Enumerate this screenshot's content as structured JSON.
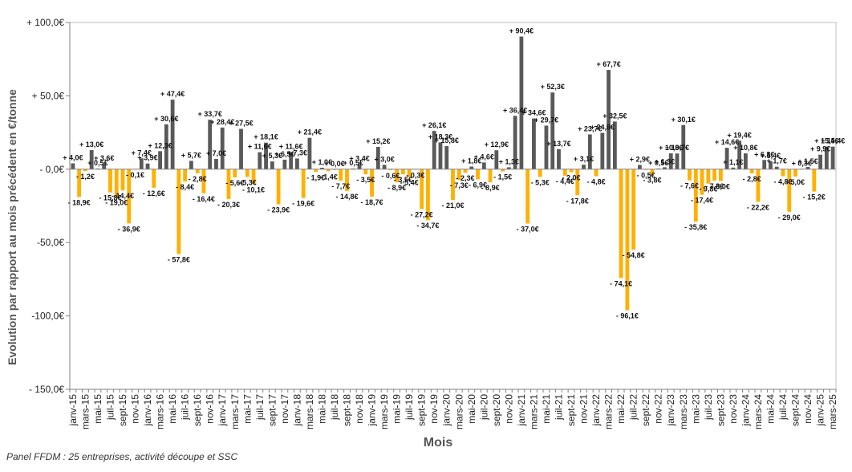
{
  "footnote": "Panel FFDM : 25 entreprises, activité découpe et SSC",
  "chart_data": {
    "type": "bar",
    "title": "",
    "xlabel": "Mois",
    "ylabel": "Evolution par rapport au mois précédent en €/tonne",
    "ylim": [
      -150,
      100
    ],
    "yticks": [
      100,
      50,
      0,
      -50,
      -100,
      -150
    ],
    "ytick_labels": [
      "+ 100,0€",
      "+ 50,0€",
      "- 0,0€",
      "-50,0€",
      "-100,0€",
      "- 150,0€"
    ],
    "grid": false,
    "legend": "none",
    "colors": {
      "positive": "#595959",
      "negative": "#ffb000"
    },
    "categories": [
      "janv-15",
      "févr-15",
      "mars-15",
      "avr-15",
      "mai-15",
      "juin-15",
      "juil-15",
      "août-15",
      "sept-15",
      "oct-15",
      "nov-15",
      "déc-15",
      "janv-16",
      "févr-16",
      "mars-16",
      "avr-16",
      "mai-16",
      "juin-16",
      "juil-16",
      "août-16",
      "sept-16",
      "oct-16",
      "nov-16",
      "déc-16",
      "janv-17",
      "févr-17",
      "mars-17",
      "avr-17",
      "mai-17",
      "juin-17",
      "juil-17",
      "août-17",
      "sept-17",
      "oct-17",
      "nov-17",
      "déc-17",
      "janv-18",
      "févr-18",
      "mars-18",
      "avr-18",
      "mai-18",
      "juin-18",
      "juil-18",
      "août-18",
      "sept-18",
      "oct-18",
      "nov-18",
      "déc-18",
      "janv-19",
      "févr-19",
      "mars-19",
      "avr-19",
      "mai-19",
      "juin-19",
      "juil-19",
      "août-19",
      "sept-19",
      "oct-19",
      "nov-19",
      "déc-19",
      "janv-20",
      "févr-20",
      "mars-20",
      "avr-20",
      "mai-20",
      "juin-20",
      "juil-20",
      "août-20",
      "sept-20",
      "oct-20",
      "nov-20",
      "déc-20",
      "janv-21",
      "févr-21",
      "mars-21",
      "avr-21",
      "mai-21",
      "juin-21",
      "juil-21",
      "août-21",
      "sept-21",
      "oct-21",
      "nov-21",
      "déc-21",
      "janv-22",
      "févr-22",
      "mars-22",
      "avr-22",
      "mai-22",
      "juin-22",
      "juil-22",
      "août-22",
      "sept-22",
      "oct-22",
      "nov-22",
      "déc-22",
      "janv-23",
      "févr-23",
      "mars-23",
      "avr-23",
      "mai-23",
      "juin-23",
      "juil-23",
      "août-23",
      "sept-23",
      "oct-23",
      "nov-23",
      "déc-23",
      "janv-24",
      "févr-24",
      "mars-24",
      "avr-24",
      "mai-24",
      "juin-24",
      "juil-24",
      "août-24",
      "sept-24",
      "oct-24",
      "nov-24",
      "déc-24",
      "janv-25",
      "févr-25",
      "mars-25"
    ],
    "tick_labels": [
      "janv-15",
      "mars-15",
      "mai-15",
      "juil-15",
      "sept-15",
      "nov-15",
      "janv-16",
      "mars-16",
      "mai-16",
      "juil-16",
      "sept-16",
      "nov-16",
      "janv-17",
      "mars-17",
      "mai-17",
      "juil-17",
      "sept-17",
      "nov-17",
      "janv-18",
      "mars-18",
      "mai-18",
      "juil-18",
      "sept-18",
      "nov-18",
      "janv-19",
      "mars-19",
      "mai-19",
      "juil-19",
      "sept-19",
      "nov-19",
      "janv-20",
      "mars-20",
      "mai-20",
      "juil-20",
      "sept-20",
      "nov-20",
      "janv-21",
      "mars-21",
      "mai-21",
      "juil-21",
      "sept-21",
      "nov-21",
      "janv-22",
      "mars-22",
      "mai-22",
      "juil-22",
      "sept-22",
      "nov-22",
      "janv-23",
      "mars-23",
      "mai-23",
      "juil-23",
      "sept-23",
      "nov-23",
      "janv-24",
      "mars-24",
      "mai-24",
      "juil-24",
      "sept-24",
      "nov-24",
      "janv-25",
      "mars-25"
    ],
    "values": [
      4.0,
      -18.9,
      -1.2,
      13.0,
      0.5,
      3.6,
      -15.8,
      -19.0,
      -14.4,
      -36.9,
      -0.1,
      7.4,
      3.9,
      -12.6,
      12.3,
      30.6,
      47.4,
      -57.8,
      -8.4,
      5.7,
      -2.8,
      -16.4,
      33.7,
      7.0,
      28.4,
      -20.3,
      -5.6,
      27.5,
      -5.3,
      -10.1,
      11.6,
      18.1,
      5.3,
      -23.9,
      6.5,
      11.6,
      7.3,
      -19.6,
      21.4,
      -1.9,
      1.0,
      -1.4,
      0.0,
      -7.7,
      -14.8,
      0.5,
      3.4,
      -3.5,
      -18.7,
      15.2,
      3.0,
      -0.6,
      -8.9,
      -3.5,
      -5.4,
      -0.3,
      -27.2,
      -34.7,
      26.1,
      18.3,
      15.8,
      -21.0,
      -7.3,
      -2.3,
      1.8,
      -6.9,
      4.6,
      -8.9,
      12.9,
      -1.5,
      1.3,
      36.4,
      90.4,
      -37.0,
      34.6,
      -5.3,
      29.7,
      52.3,
      13.7,
      -4.4,
      -2.0,
      -17.8,
      3.1,
      23.7,
      -4.8,
      24.8,
      67.7,
      32.5,
      -74.1,
      -96.1,
      -54.8,
      2.9,
      -0.5,
      -3.8,
      0.5,
      1.3,
      10.8,
      10.7,
      30.1,
      -7.6,
      -35.8,
      -17.4,
      -9.8,
      -7.8,
      -8.0,
      14.6,
      1.1,
      19.4,
      10.8,
      -2.8,
      -22.2,
      6.3,
      5.4,
      1.7,
      -4.8,
      -29.0,
      -5.0,
      0.3,
      1.5,
      -15.2,
      9.9,
      15.4,
      15.4
    ],
    "data_labels": [
      "+ 4,0€",
      "- 18,9€",
      "- 1,2€",
      "+ 13,0€",
      "+ 0,5€",
      "+ 3,6€",
      "- 15,8€",
      "- 19,0€",
      "- 14,4€",
      "- 36,9€",
      "- 0,1€",
      "+ 7,4€",
      "+ 3,9€",
      "- 12,6€",
      "+ 12,3€",
      "+ 30,6€",
      "+ 47,4€",
      "- 57,8€",
      "- 8,4€",
      "+ 5,7€",
      "- 2,8€",
      "- 16,4€",
      "+ 33,7€",
      "+ 7,0€",
      "+ 28,4€",
      "- 20,3€",
      "- 5,6€",
      "+ 27,5€",
      "- 5,3€",
      "- 10,1€",
      "+ 11,6€",
      "+ 18,1€",
      "+ 5,3€",
      "- 23,9€",
      "+ 6,5€",
      "+ 11,6€",
      "+ 7,3€",
      "- 19,6€",
      "+ 21,4€",
      "- 1,9€",
      "+ 1,0€",
      "- 1,4€",
      "+ 0,0€",
      "- 7,7€",
      "- 14,8€",
      "+ 0,5€",
      "+ 3,4€",
      "- 3,5€",
      "- 18,7€",
      "+ 15,2€",
      "+ 3,0€",
      "- 0,6€",
      "- 8,9€",
      "- 3,5€",
      "- 5,4€",
      "- 0,3€",
      "- 27,2€",
      "- 34,7€",
      "+ 26,1€",
      "+ 18,3€",
      "+ 15,8€",
      "- 21,0€",
      "- 7,3€",
      "- 2,3€",
      "+ 1,8€",
      "- 6,9€",
      "+ 4,6€",
      "- 8,9€",
      "+ 12,9€",
      "- 1,5€",
      "+ 1,3€",
      "+ 36,4€",
      "+ 90,4€",
      "- 37,0€",
      "+ 34,6€",
      "- 5,3€",
      "+ 29,7€",
      "+ 52,3€",
      "+ 13,7€",
      "- 4,4€",
      "- 2,0€",
      "- 17,8€",
      "+ 3,1€",
      "+ 23,7€",
      "- 4,8€",
      "+ 24,8€",
      "+ 67,7€",
      "+ 32,5€",
      "- 74,1€",
      "- 96,1€",
      "- 54,8€",
      "+ 2,9€",
      "- 0,5€",
      "- 3,8€",
      "+ 0,5€",
      "+ 1,3€",
      "+ 10,8€",
      "+ 10,7€",
      "+ 30,1€",
      "- 7,6€",
      "- 35,8€",
      "- 17,4€",
      "- 9,8€",
      "- 7,8€",
      "- 8,0€",
      "+ 14,6€",
      "+ 1,1€",
      "+ 19,4€",
      "+ 10,8€",
      "- 2,8€",
      "- 22,2€",
      "+ 6,3€",
      "+ 5,4€",
      "+ 1,7€",
      "- 4,8€",
      "- 29,0€",
      "- 5,0€",
      "+ 0,3€",
      "+ 1,5€",
      "- 15,2€",
      "+ 9,9€",
      "+ 15,4€",
      "+ 15,4€"
    ]
  }
}
